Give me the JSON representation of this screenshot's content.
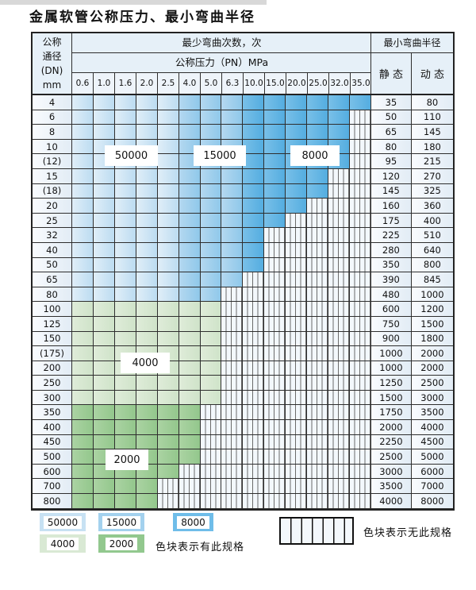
{
  "title": "金属软管公称压力、最小弯曲半径",
  "colors": {
    "zone_50000": "#c7e1f3",
    "zone_15000": "#a3d1ee",
    "zone_8000": "#6fbde9",
    "zone_4000": "#d9e9d4",
    "zone_2000": "#92c88e",
    "grid_line": "#2e2e2e",
    "header_bg": "#e6f0f8"
  },
  "table": {
    "dn_header_lines": [
      "公称",
      "通径",
      "(DN)",
      "mm"
    ],
    "bend_cycles_header": "最少弯曲次数，次",
    "pressure_header": "公称压力（PN）MPa",
    "radius_header": "最小弯曲半径",
    "static_label": "静 态",
    "dynamic_label": "动 态",
    "pressure_columns": [
      "0.6",
      "1.0",
      "1.6",
      "2.0",
      "2.5",
      "4.0",
      "5.0",
      "6.3",
      "10.0",
      "15.0",
      "20.0",
      "25.0",
      "32.0",
      "35.0"
    ],
    "rows": [
      {
        "dn": "4",
        "static": "35",
        "dynamic": "80",
        "through": 13,
        "zone": "blue"
      },
      {
        "dn": "6",
        "static": "50",
        "dynamic": "110",
        "through": 12,
        "zone": "blue"
      },
      {
        "dn": "8",
        "static": "65",
        "dynamic": "145",
        "through": 12,
        "zone": "blue"
      },
      {
        "dn": "10",
        "static": "80",
        "dynamic": "180",
        "through": 12,
        "zone": "blue"
      },
      {
        "dn": "(12)",
        "static": "95",
        "dynamic": "215",
        "through": 12,
        "zone": "blue"
      },
      {
        "dn": "15",
        "static": "120",
        "dynamic": "270",
        "through": 11,
        "zone": "blue"
      },
      {
        "dn": "(18)",
        "static": "145",
        "dynamic": "325",
        "through": 11,
        "zone": "blue"
      },
      {
        "dn": "20",
        "static": "160",
        "dynamic": "360",
        "through": 10,
        "zone": "blue"
      },
      {
        "dn": "25",
        "static": "175",
        "dynamic": "400",
        "through": 9,
        "zone": "blue"
      },
      {
        "dn": "32",
        "static": "225",
        "dynamic": "510",
        "through": 8,
        "zone": "blue"
      },
      {
        "dn": "40",
        "static": "280",
        "dynamic": "640",
        "through": 8,
        "zone": "blue"
      },
      {
        "dn": "50",
        "static": "350",
        "dynamic": "800",
        "through": 8,
        "zone": "blue"
      },
      {
        "dn": "65",
        "static": "390",
        "dynamic": "845",
        "through": 7,
        "zone": "blue"
      },
      {
        "dn": "80",
        "static": "480",
        "dynamic": "1000",
        "through": 6,
        "zone": "blue"
      },
      {
        "dn": "100",
        "static": "600",
        "dynamic": "1200",
        "through": 6,
        "zone": "g4000"
      },
      {
        "dn": "125",
        "static": "750",
        "dynamic": "1500",
        "through": 6,
        "zone": "g4000"
      },
      {
        "dn": "150",
        "static": "900",
        "dynamic": "1800",
        "through": 6,
        "zone": "g4000"
      },
      {
        "dn": "(175)",
        "static": "1000",
        "dynamic": "2000",
        "through": 6,
        "zone": "g4000"
      },
      {
        "dn": "200",
        "static": "1000",
        "dynamic": "2000",
        "through": 6,
        "zone": "g4000"
      },
      {
        "dn": "250",
        "static": "1250",
        "dynamic": "2500",
        "through": 6,
        "zone": "g4000"
      },
      {
        "dn": "300",
        "static": "1500",
        "dynamic": "3000",
        "through": 6,
        "zone": "g4000"
      },
      {
        "dn": "350",
        "static": "1750",
        "dynamic": "3500",
        "through": 5,
        "zone": "g2000"
      },
      {
        "dn": "400",
        "static": "2000",
        "dynamic": "4000",
        "through": 5,
        "zone": "g2000"
      },
      {
        "dn": "450",
        "static": "2250",
        "dynamic": "4500",
        "through": 5,
        "zone": "g2000"
      },
      {
        "dn": "500",
        "static": "2500",
        "dynamic": "5000",
        "through": 5,
        "zone": "g2000"
      },
      {
        "dn": "600",
        "static": "3000",
        "dynamic": "6000",
        "through": 4,
        "zone": "g2000"
      },
      {
        "dn": "700",
        "static": "3500",
        "dynamic": "7000",
        "through": 3,
        "zone": "g2000"
      },
      {
        "dn": "800",
        "static": "4000",
        "dynamic": "8000",
        "through": 3,
        "zone": "g2000"
      }
    ]
  },
  "zone_labels": [
    {
      "text": "50000"
    },
    {
      "text": "15000"
    },
    {
      "text": "8000"
    },
    {
      "text": "4000"
    },
    {
      "text": "2000"
    }
  ],
  "legend": {
    "items": [
      {
        "label": "50000"
      },
      {
        "label": "15000"
      },
      {
        "label": "8000"
      },
      {
        "label": "4000"
      },
      {
        "label": "2000"
      }
    ],
    "has_spec_text": "色块表示有此规格",
    "no_spec_text": "色块表示无此规格"
  },
  "chart_data": {
    "type": "table",
    "title": "金属软管公称压力、最小弯曲半径",
    "pn_columns": [
      0.6,
      1.0,
      1.6,
      2.0,
      2.5,
      4.0,
      5.0,
      6.3,
      10.0,
      15.0,
      20.0,
      25.0,
      32.0,
      35.0
    ],
    "bend_cycle_bands": {
      "50000": "blue rows (DN4-80), PN 0.6-2.5",
      "15000": "blue rows (DN4-80), PN 4.0-6.3",
      "8000": "blue rows (DN4-50), PN 10.0-35.0",
      "4000": "green rows DN100-300 (all available PN)",
      "2000": "green rows DN350-800 (all available PN)"
    },
    "rows": [
      {
        "dn": "4",
        "max_pn": 35.0,
        "static_radius": 35,
        "dynamic_radius": 80
      },
      {
        "dn": "6",
        "max_pn": 32.0,
        "static_radius": 50,
        "dynamic_radius": 110
      },
      {
        "dn": "8",
        "max_pn": 32.0,
        "static_radius": 65,
        "dynamic_radius": 145
      },
      {
        "dn": "10",
        "max_pn": 32.0,
        "static_radius": 80,
        "dynamic_radius": 180
      },
      {
        "dn": "(12)",
        "max_pn": 32.0,
        "static_radius": 95,
        "dynamic_radius": 215
      },
      {
        "dn": "15",
        "max_pn": 25.0,
        "static_radius": 120,
        "dynamic_radius": 270
      },
      {
        "dn": "(18)",
        "max_pn": 25.0,
        "static_radius": 145,
        "dynamic_radius": 325
      },
      {
        "dn": "20",
        "max_pn": 20.0,
        "static_radius": 160,
        "dynamic_radius": 360
      },
      {
        "dn": "25",
        "max_pn": 15.0,
        "static_radius": 175,
        "dynamic_radius": 400
      },
      {
        "dn": "32",
        "max_pn": 10.0,
        "static_radius": 225,
        "dynamic_radius": 510
      },
      {
        "dn": "40",
        "max_pn": 10.0,
        "static_radius": 280,
        "dynamic_radius": 640
      },
      {
        "dn": "50",
        "max_pn": 10.0,
        "static_radius": 350,
        "dynamic_radius": 800
      },
      {
        "dn": "65",
        "max_pn": 6.3,
        "static_radius": 390,
        "dynamic_radius": 845
      },
      {
        "dn": "80",
        "max_pn": 5.0,
        "static_radius": 480,
        "dynamic_radius": 1000
      },
      {
        "dn": "100",
        "max_pn": 5.0,
        "static_radius": 600,
        "dynamic_radius": 1200
      },
      {
        "dn": "125",
        "max_pn": 5.0,
        "static_radius": 750,
        "dynamic_radius": 1500
      },
      {
        "dn": "150",
        "max_pn": 5.0,
        "static_radius": 900,
        "dynamic_radius": 1800
      },
      {
        "dn": "(175)",
        "max_pn": 5.0,
        "static_radius": 1000,
        "dynamic_radius": 2000
      },
      {
        "dn": "200",
        "max_pn": 5.0,
        "static_radius": 1000,
        "dynamic_radius": 2000
      },
      {
        "dn": "250",
        "max_pn": 5.0,
        "static_radius": 1250,
        "dynamic_radius": 2500
      },
      {
        "dn": "300",
        "max_pn": 5.0,
        "static_radius": 1500,
        "dynamic_radius": 3000
      },
      {
        "dn": "350",
        "max_pn": 4.0,
        "static_radius": 1750,
        "dynamic_radius": 3500
      },
      {
        "dn": "400",
        "max_pn": 4.0,
        "static_radius": 2000,
        "dynamic_radius": 4000
      },
      {
        "dn": "450",
        "max_pn": 4.0,
        "static_radius": 2250,
        "dynamic_radius": 4500
      },
      {
        "dn": "500",
        "max_pn": 4.0,
        "static_radius": 2500,
        "dynamic_radius": 5000
      },
      {
        "dn": "600",
        "max_pn": 2.5,
        "static_radius": 3000,
        "dynamic_radius": 6000
      },
      {
        "dn": "700",
        "max_pn": 2.0,
        "static_radius": 3500,
        "dynamic_radius": 7000
      },
      {
        "dn": "800",
        "max_pn": 2.0,
        "static_radius": 4000,
        "dynamic_radius": 8000
      }
    ]
  }
}
